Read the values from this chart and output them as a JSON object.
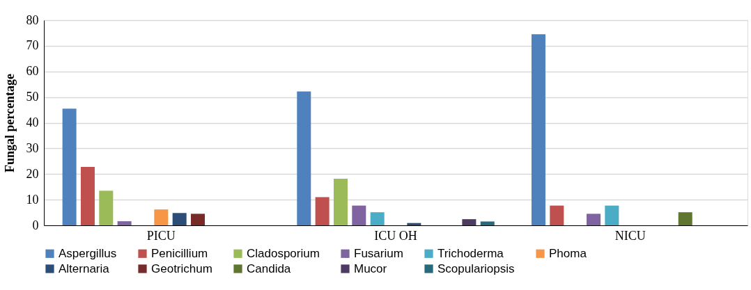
{
  "chart_data": {
    "type": "bar",
    "ylabel": "Fungal percentage",
    "categories": [
      "PICU",
      "ICU OH",
      "NICU"
    ],
    "series": [
      {
        "name": "Aspergillus",
        "color": "#4f81bd",
        "values": [
          45.5,
          52.2,
          74.5
        ]
      },
      {
        "name": "Penicillium",
        "color": "#c0504d",
        "values": [
          22.8,
          11.0,
          7.7
        ]
      },
      {
        "name": "Cladosporium",
        "color": "#9bbb59",
        "values": [
          13.5,
          18.2,
          0
        ]
      },
      {
        "name": "Fusarium",
        "color": "#8064a2",
        "values": [
          1.6,
          7.7,
          4.5
        ]
      },
      {
        "name": "Trichoderma",
        "color": "#4bacc6",
        "values": [
          0,
          5.1,
          7.7
        ]
      },
      {
        "name": "Phoma",
        "color": "#f79646",
        "values": [
          6.2,
          0,
          0
        ]
      },
      {
        "name": "Alternaria",
        "color": "#2c4d75",
        "values": [
          4.8,
          0.9,
          0
        ]
      },
      {
        "name": "Geotrichum",
        "color": "#772c2a",
        "values": [
          4.5,
          0,
          0
        ]
      },
      {
        "name": "Candida",
        "color": "#5f7530",
        "values": [
          0,
          0,
          5.1
        ]
      },
      {
        "name": "Mucor",
        "color": "#4d3b62",
        "values": [
          0,
          2.4,
          0
        ]
      },
      {
        "name": "Scopulariopsis",
        "color": "#276a7c",
        "values": [
          0,
          1.5,
          0
        ]
      }
    ],
    "ylim": [
      0,
      80
    ],
    "yticks": [
      0,
      10,
      20,
      30,
      40,
      50,
      60,
      70,
      80
    ],
    "grid": "y",
    "legend": "bottom"
  }
}
